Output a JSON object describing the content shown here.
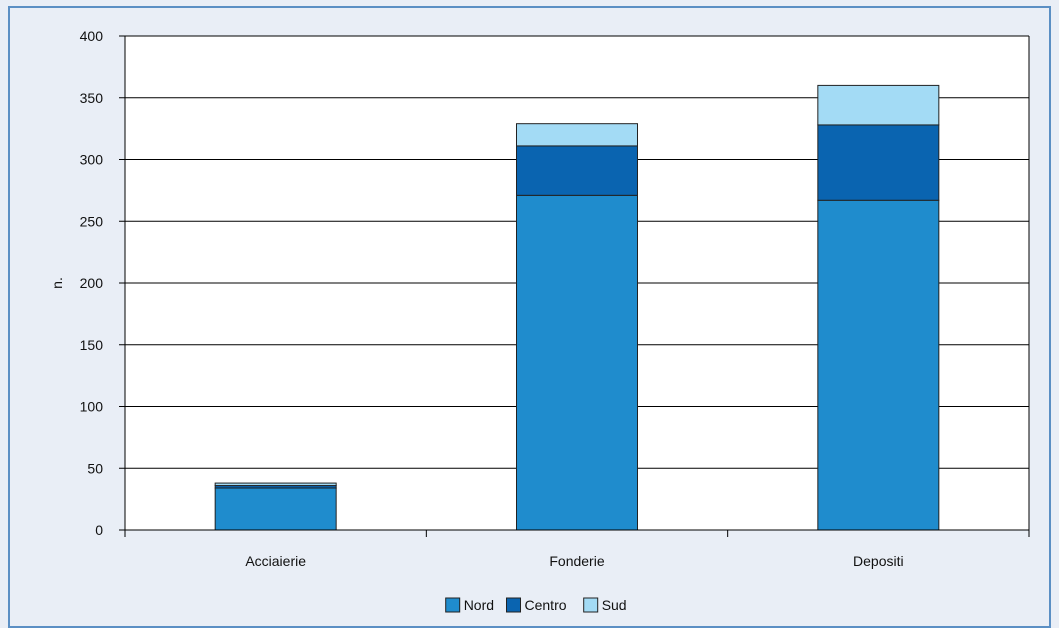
{
  "chart_data": {
    "type": "bar",
    "stacked": true,
    "categories": [
      "Acciaierie",
      "Fonderie",
      "Depositi"
    ],
    "series": [
      {
        "name": "Nord",
        "values": [
          34,
          271,
          267
        ],
        "color": "#1f8ccd"
      },
      {
        "name": "Centro",
        "values": [
          2,
          40,
          61
        ],
        "color": "#0a64b0"
      },
      {
        "name": "Sud",
        "values": [
          2,
          18,
          32
        ],
        "color": "#a3dbf5"
      }
    ],
    "ylabel": "n.",
    "xlabel": "",
    "ylim": [
      0,
      400
    ],
    "yticks": [
      0,
      50,
      100,
      150,
      200,
      250,
      300,
      350,
      400
    ],
    "grid": true,
    "legend_position": "bottom"
  }
}
